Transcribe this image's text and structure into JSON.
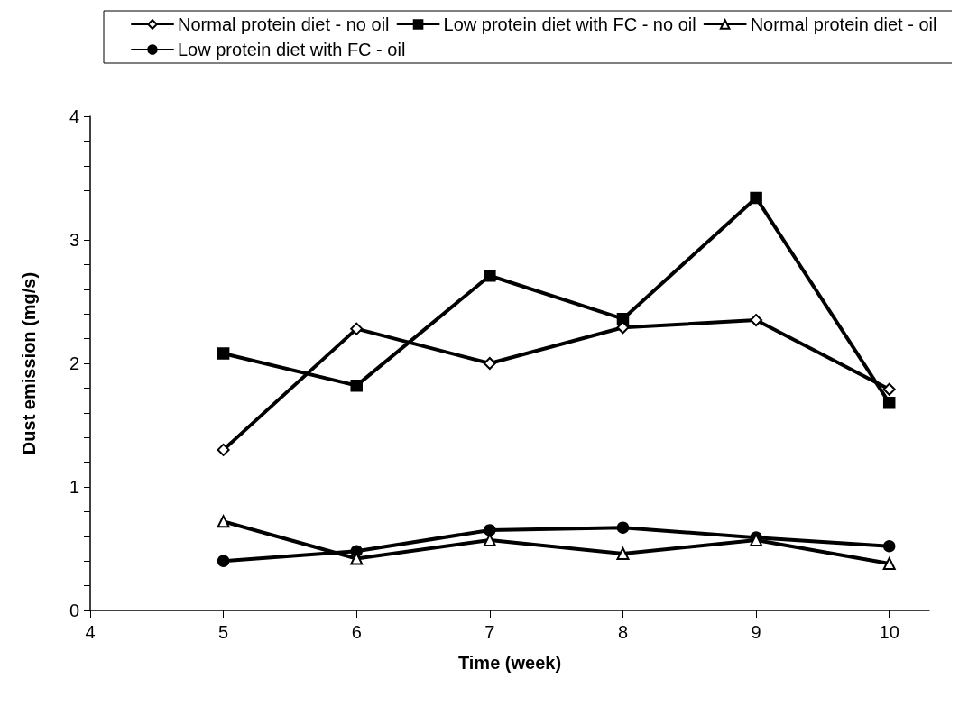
{
  "chart_data": {
    "type": "line",
    "xlabel": "Time (week)",
    "ylabel": "Dust emission (mg/s)",
    "x": [
      5,
      6,
      7,
      8,
      9,
      10
    ],
    "series": [
      {
        "name": "Normal protein diet - no oil",
        "color": "#000000",
        "marker": "diamond",
        "values": [
          1.3,
          2.28,
          2.0,
          2.29,
          2.35,
          1.79
        ]
      },
      {
        "name": "Low protein diet with FC - no oil",
        "color": "#000000",
        "marker": "square",
        "values": [
          2.08,
          1.82,
          2.71,
          2.36,
          3.34,
          1.68
        ]
      },
      {
        "name": "Normal protein diet - oil",
        "color": "#000000",
        "marker": "triangle",
        "values": [
          0.72,
          0.42,
          0.57,
          0.46,
          0.57,
          0.38
        ]
      },
      {
        "name": "Low protein diet with FC - oil",
        "color": "#000000",
        "marker": "circle",
        "values": [
          0.4,
          0.48,
          0.65,
          0.67,
          0.59,
          0.52
        ]
      }
    ],
    "xlim": [
      4,
      10.3
    ],
    "xticks": [
      4,
      5,
      6,
      7,
      8,
      9,
      10
    ],
    "ylim": [
      0,
      4
    ],
    "yticks": [
      0,
      {
        "value": 0.2,
        "label": null
      },
      {
        "value": 0.4,
        "label": null
      },
      {
        "value": 0.6,
        "label": null
      },
      {
        "value": 0.8,
        "label": null
      },
      1,
      {
        "value": 1.2,
        "label": null
      },
      {
        "value": 1.4,
        "label": null
      },
      {
        "value": 1.6,
        "label": null
      },
      {
        "value": 1.8,
        "label": null
      },
      2,
      {
        "value": 2.2,
        "label": null
      },
      {
        "value": 2.4,
        "label": null
      },
      {
        "value": 2.6,
        "label": null
      },
      {
        "value": 2.8,
        "label": null
      },
      3,
      {
        "value": 3.2,
        "label": null
      },
      {
        "value": 3.4,
        "label": null
      },
      {
        "value": 3.6,
        "label": null
      },
      {
        "value": 3.8,
        "label": null
      },
      4
    ],
    "grid": false,
    "legend": "top",
    "line_style": "solid"
  }
}
